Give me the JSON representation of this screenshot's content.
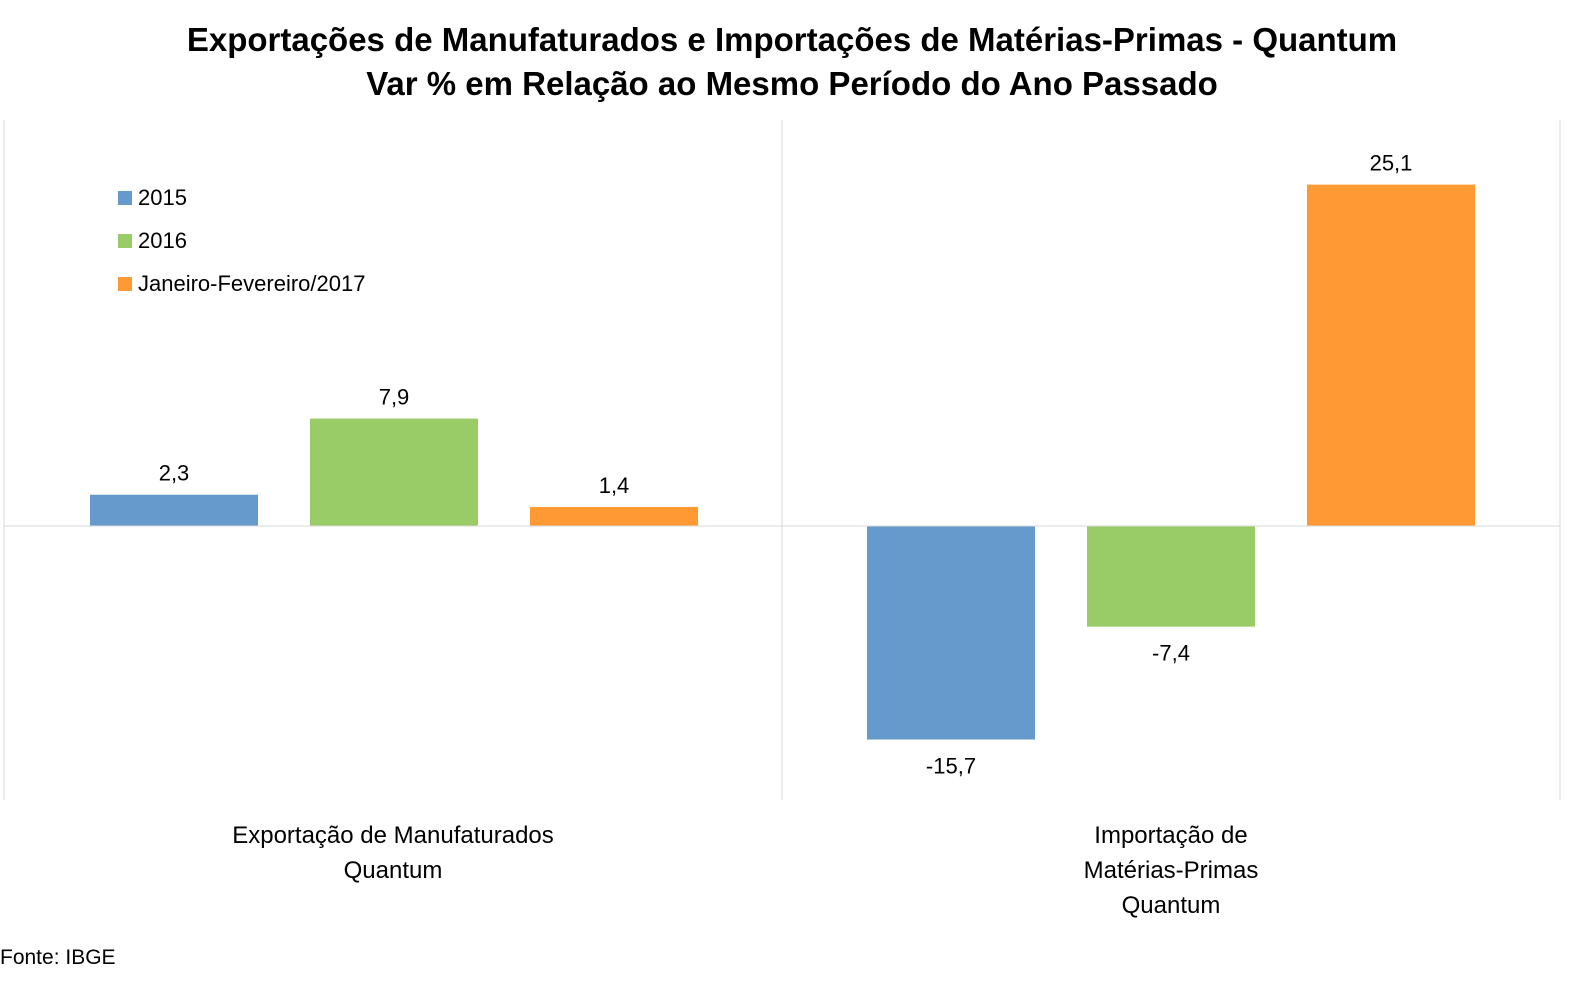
{
  "title": {
    "line1": "Exportações de Manufaturados e Importações de Matérias-Primas - Quantum",
    "line2": "Var % em Relação ao Mesmo Período do Ano Passado"
  },
  "source": "Fonte: IBGE",
  "chart_data": {
    "type": "bar",
    "categories": [
      [
        "Exportação de Manufaturados",
        "Quantum"
      ],
      [
        "Importação de",
        "Matérias-Primas",
        "Quantum"
      ]
    ],
    "series": [
      {
        "name": "2015",
        "color": "#6699cc",
        "values": [
          2.3,
          -15.7
        ],
        "labels": [
          "2,3",
          "-15,7"
        ]
      },
      {
        "name": "2016",
        "color": "#99cc66",
        "values": [
          7.9,
          -7.4
        ],
        "labels": [
          "7,9",
          "-7,4"
        ]
      },
      {
        "name": "Janeiro-Fevereiro/2017",
        "color": "#ff9933",
        "values": [
          1.4,
          25.1
        ],
        "labels": [
          "1,4",
          "25,1"
        ]
      }
    ],
    "ylim": [
      -20,
      30
    ],
    "grid": false,
    "legend": "top-left",
    "xlabel": "",
    "ylabel": ""
  }
}
